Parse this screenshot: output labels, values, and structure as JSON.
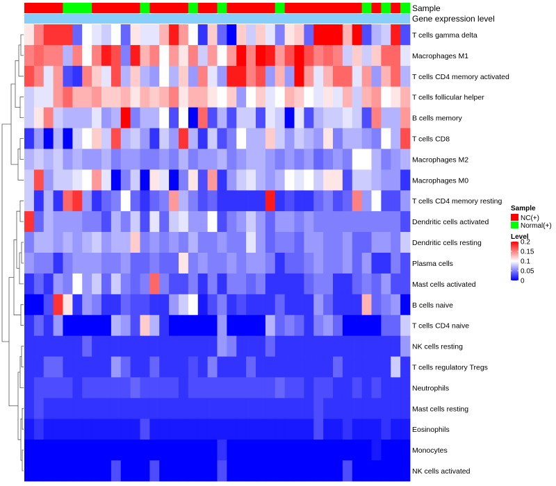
{
  "chart_data": {
    "type": "heatmap",
    "title": "",
    "num_samples": 40,
    "annotation_tracks": [
      {
        "name": "Sample"
      },
      {
        "name": "Gene expression level"
      }
    ],
    "sample_groups": [
      "NC",
      "NC",
      "NC",
      "NC",
      "Normal",
      "Normal",
      "Normal",
      "NC",
      "NC",
      "NC",
      "NC",
      "NC",
      "Normal",
      "NC",
      "NC",
      "NC",
      "NC",
      "Normal",
      "NC",
      "NC",
      "Normal",
      "NC",
      "NC",
      "NC",
      "NC",
      "NC",
      "Normal",
      "NC",
      "NC",
      "NC",
      "NC",
      "NC",
      "NC",
      "NC",
      "NC",
      "Normal",
      "NC",
      "Normal",
      "NC",
      "Normal"
    ],
    "rows": [
      {
        "name": "T cells gamma delta",
        "values": [
          0.11,
          0.15,
          0.18,
          0.18,
          0.18,
          0.04,
          0.1,
          0.09,
          0.08,
          0.1,
          0.04,
          0.11,
          0.09,
          0.09,
          0.13,
          0.19,
          0.14,
          0.1,
          0.02,
          0.12,
          0.04,
          0.0,
          0.12,
          0.08,
          0.12,
          0.09,
          0.05,
          0.11,
          0.12,
          0.04,
          0.2,
          0.2,
          0.2,
          0.13,
          0.2,
          0.03,
          0.07,
          0.08,
          0.19,
          0.03
        ]
      },
      {
        "name": "Macrophages M1",
        "values": [
          0.15,
          0.16,
          0.15,
          0.15,
          0.07,
          0.15,
          0.1,
          0.15,
          0.19,
          0.17,
          0.05,
          0.19,
          0.13,
          0.15,
          0.1,
          0.14,
          0.11,
          0.15,
          0.08,
          0.14,
          0.1,
          0.14,
          0.2,
          0.15,
          0.2,
          0.19,
          0.14,
          0.17,
          0.2,
          0.17,
          0.15,
          0.16,
          0.15,
          0.08,
          0.12,
          0.08,
          0.12,
          0.16,
          0.16,
          0.09
        ]
      },
      {
        "name": "T cells CD4 memory activated",
        "values": [
          0.17,
          0.15,
          0.09,
          0.14,
          0.03,
          0.02,
          0.15,
          0.12,
          0.09,
          0.17,
          0.07,
          0.12,
          0.07,
          0.06,
          0.1,
          0.07,
          0.12,
          0.06,
          0.15,
          0.09,
          0.06,
          0.19,
          0.19,
          0.15,
          0.17,
          0.06,
          0.13,
          0.06,
          0.21,
          0.14,
          0.09,
          0.13,
          0.16,
          0.16,
          0.09,
          0.14,
          0.06,
          0.13,
          0.16,
          0.07
        ]
      },
      {
        "name": "T cells follicular helper",
        "values": [
          0.08,
          0.09,
          0.09,
          0.14,
          0.16,
          0.13,
          0.13,
          0.14,
          0.12,
          0.12,
          0.13,
          0.11,
          0.13,
          0.12,
          0.13,
          0.15,
          0.11,
          0.13,
          0.13,
          0.11,
          0.1,
          0.12,
          0.06,
          0.1,
          0.12,
          0.09,
          0.1,
          0.13,
          0.12,
          0.1,
          0.09,
          0.11,
          0.09,
          0.13,
          0.08,
          0.13,
          0.14,
          0.1,
          0.11,
          0.13
        ]
      },
      {
        "name": "B cells memory",
        "values": [
          0.08,
          0.11,
          0.15,
          0.08,
          0.07,
          0.07,
          0.07,
          0.09,
          0.06,
          0.07,
          0.2,
          0.05,
          0.07,
          0.07,
          0.1,
          0.03,
          0.1,
          0.0,
          0.16,
          0.03,
          0.07,
          0.03,
          0.08,
          0.08,
          0.03,
          0.09,
          0.08,
          0.0,
          0.09,
          0.03,
          0.07,
          0.08,
          0.08,
          0.09,
          0.08,
          0.03,
          0.15,
          0.07,
          0.07,
          0.14
        ]
      },
      {
        "name": "T cells CD8",
        "values": [
          0.02,
          0.06,
          0.0,
          0.07,
          0.0,
          0.08,
          0.1,
          0.12,
          0.08,
          0.17,
          0.07,
          0.08,
          0.06,
          0.02,
          0.08,
          0.06,
          0.18,
          0.07,
          0.02,
          0.08,
          0.03,
          0.05,
          0.1,
          0.07,
          0.07,
          0.12,
          0.08,
          0.06,
          0.08,
          0.07,
          0.06,
          0.11,
          0.05,
          0.07,
          0.07,
          0.06,
          0.05,
          0.1,
          0.07,
          0.17
        ]
      },
      {
        "name": "Macrophages M2",
        "values": [
          0.07,
          0.08,
          0.07,
          0.08,
          0.06,
          0.07,
          0.06,
          0.06,
          0.07,
          0.05,
          0.06,
          0.06,
          0.05,
          0.05,
          0.06,
          0.05,
          0.07,
          0.05,
          0.06,
          0.06,
          0.07,
          0.05,
          0.06,
          0.07,
          0.07,
          0.06,
          0.05,
          0.06,
          0.05,
          0.06,
          0.04,
          0.05,
          0.06,
          0.05,
          0.1,
          0.1,
          0.07,
          0.05,
          0.06,
          0.07
        ]
      },
      {
        "name": "Macrophages M0",
        "values": [
          0.08,
          0.17,
          0.06,
          0.08,
          0.08,
          0.09,
          0.1,
          0.14,
          0.09,
          0.0,
          0.05,
          0.08,
          0.0,
          0.11,
          0.09,
          0.0,
          0.05,
          0.11,
          0.03,
          0.14,
          0.02,
          0.06,
          0.08,
          0.09,
          0.07,
          0.06,
          0.07,
          0.1,
          0.09,
          0.1,
          0.08,
          0.11,
          0.11,
          0.03,
          0.08,
          0.08,
          0.07,
          0.06,
          0.06,
          0.02
        ]
      },
      {
        "name": "T cells CD4 memory resting",
        "values": [
          0.08,
          0.02,
          0.07,
          0.02,
          0.16,
          0.18,
          0.06,
          0.02,
          0.04,
          0.05,
          0.1,
          0.04,
          0.02,
          0.04,
          0.05,
          0.14,
          0.07,
          0.05,
          0.03,
          0.04,
          0.02,
          0.02,
          0.02,
          0.02,
          0.02,
          0.19,
          0.02,
          0.03,
          0.02,
          0.02,
          0.04,
          0.05,
          0.03,
          0.04,
          0.15,
          0.06,
          0.1,
          0.03,
          0.03,
          0.06
        ]
      },
      {
        "name": "Dendritic cells activated",
        "values": [
          0.18,
          0.04,
          0.07,
          0.06,
          0.06,
          0.06,
          0.05,
          0.05,
          0.03,
          0.07,
          0.05,
          0.08,
          0.03,
          0.09,
          0.04,
          0.08,
          0.09,
          0.06,
          0.06,
          0.1,
          0.03,
          0.05,
          0.06,
          0.08,
          0.06,
          0.04,
          0.06,
          0.06,
          0.05,
          0.06,
          0.05,
          0.05,
          0.05,
          0.05,
          0.05,
          0.05,
          0.05,
          0.05,
          0.05,
          0.03
        ]
      },
      {
        "name": "Dendritic cells resting",
        "values": [
          0.05,
          0.07,
          0.07,
          0.06,
          0.07,
          0.06,
          0.07,
          0.08,
          0.06,
          0.07,
          0.07,
          0.12,
          0.05,
          0.06,
          0.05,
          0.06,
          0.05,
          0.07,
          0.05,
          0.05,
          0.06,
          0.05,
          0.05,
          0.09,
          0.06,
          0.04,
          0.05,
          0.05,
          0.04,
          0.06,
          0.06,
          0.05,
          0.05,
          0.06,
          0.04,
          0.04,
          0.06,
          0.06,
          0.05,
          0.08
        ]
      },
      {
        "name": "Plasma cells",
        "values": [
          0.06,
          0.05,
          0.05,
          0.02,
          0.05,
          0.06,
          0.06,
          0.06,
          0.05,
          0.05,
          0.06,
          0.04,
          0.04,
          0.05,
          0.04,
          0.04,
          0.11,
          0.05,
          0.06,
          0.05,
          0.05,
          0.06,
          0.05,
          0.06,
          0.06,
          0.05,
          0.02,
          0.04,
          0.04,
          0.05,
          0.06,
          0.05,
          0.05,
          0.06,
          0.04,
          0.06,
          0.02,
          0.02,
          0.05,
          0.03
        ]
      },
      {
        "name": "Mast cells activated",
        "values": [
          0.02,
          0.04,
          0.02,
          0.06,
          0.05,
          0.1,
          0.06,
          0.08,
          0.04,
          0.08,
          0.05,
          0.04,
          0.05,
          0.16,
          0.05,
          0.03,
          0.03,
          0.05,
          0.02,
          0.05,
          0.02,
          0.05,
          0.05,
          0.04,
          0.05,
          0.02,
          0.02,
          0.02,
          0.02,
          0.04,
          0.05,
          0.05,
          0.02,
          0.02,
          0.04,
          0.05,
          0.04,
          0.06,
          0.03,
          0.03
        ]
      },
      {
        "name": "B cells naive",
        "values": [
          0.0,
          0.0,
          0.03,
          0.18,
          0.11,
          0.02,
          0.06,
          0.05,
          0.02,
          0.02,
          0.04,
          0.03,
          0.03,
          0.02,
          0.02,
          0.06,
          0.08,
          0.1,
          0.01,
          0.03,
          0.05,
          0.02,
          0.03,
          0.02,
          0.02,
          0.02,
          0.04,
          0.02,
          0.02,
          0.02,
          0.06,
          0.04,
          0.02,
          0.02,
          0.02,
          0.13,
          0.04,
          0.05,
          0.06,
          0.0
        ]
      },
      {
        "name": "T cells CD4 naive",
        "values": [
          0.02,
          0.04,
          0.02,
          0.06,
          0.0,
          0.0,
          0.0,
          0.0,
          0.0,
          0.07,
          0.06,
          0.03,
          0.12,
          0.07,
          0.02,
          0.0,
          0.0,
          0.0,
          0.0,
          0.0,
          0.06,
          0.0,
          0.0,
          0.0,
          0.0,
          0.07,
          0.04,
          0.05,
          0.04,
          0.02,
          0.05,
          0.06,
          0.04,
          0.0,
          0.0,
          0.0,
          0.0,
          0.04,
          0.04,
          0.08
        ]
      },
      {
        "name": "NK cells resting",
        "values": [
          0.02,
          0.02,
          0.02,
          0.02,
          0.02,
          0.02,
          0.04,
          0.02,
          0.02,
          0.02,
          0.02,
          0.02,
          0.02,
          0.02,
          0.02,
          0.02,
          0.02,
          0.02,
          0.02,
          0.02,
          0.06,
          0.05,
          0.02,
          0.02,
          0.02,
          0.04,
          0.02,
          0.02,
          0.02,
          0.02,
          0.02,
          0.02,
          0.02,
          0.02,
          0.02,
          0.02,
          0.02,
          0.02,
          0.02,
          0.06
        ]
      },
      {
        "name": "T cells regulatory  Tregs",
        "values": [
          0.02,
          0.02,
          0.04,
          0.04,
          0.02,
          0.02,
          0.02,
          0.02,
          0.02,
          0.06,
          0.04,
          0.02,
          0.02,
          0.04,
          0.02,
          0.02,
          0.02,
          0.03,
          0.02,
          0.05,
          0.02,
          0.02,
          0.02,
          0.04,
          0.02,
          0.02,
          0.02,
          0.02,
          0.02,
          0.02,
          0.02,
          0.02,
          0.04,
          0.02,
          0.02,
          0.02,
          0.02,
          0.02,
          0.08,
          0.02
        ]
      },
      {
        "name": "Neutrophils",
        "values": [
          0.02,
          0.03,
          0.03,
          0.03,
          0.03,
          0.02,
          0.03,
          0.03,
          0.03,
          0.03,
          0.03,
          0.04,
          0.03,
          0.03,
          0.03,
          0.03,
          0.02,
          0.03,
          0.03,
          0.03,
          0.03,
          0.03,
          0.03,
          0.03,
          0.03,
          0.03,
          0.04,
          0.03,
          0.03,
          0.02,
          0.03,
          0.03,
          0.02,
          0.02,
          0.03,
          0.02,
          0.03,
          0.02,
          0.02,
          0.02
        ]
      },
      {
        "name": "Mast cells resting",
        "values": [
          0.02,
          0.03,
          0.02,
          0.02,
          0.02,
          0.02,
          0.02,
          0.02,
          0.02,
          0.02,
          0.02,
          0.02,
          0.02,
          0.02,
          0.02,
          0.02,
          0.02,
          0.02,
          0.02,
          0.02,
          0.02,
          0.02,
          0.02,
          0.02,
          0.02,
          0.02,
          0.02,
          0.02,
          0.02,
          0.02,
          0.03,
          0.02,
          0.02,
          0.02,
          0.02,
          0.02,
          0.02,
          0.02,
          0.02,
          0.02
        ]
      },
      {
        "name": "Eosinophils",
        "values": [
          0.01,
          0.02,
          0.01,
          0.01,
          0.01,
          0.01,
          0.01,
          0.01,
          0.01,
          0.01,
          0.01,
          0.01,
          0.03,
          0.01,
          0.01,
          0.01,
          0.01,
          0.01,
          0.01,
          0.01,
          0.01,
          0.01,
          0.01,
          0.01,
          0.01,
          0.01,
          0.01,
          0.01,
          0.01,
          0.01,
          0.03,
          0.01,
          0.01,
          0.02,
          0.01,
          0.01,
          0.01,
          0.02,
          0.01,
          0.01
        ]
      },
      {
        "name": "Monocytes",
        "values": [
          0.0,
          0.0,
          0.0,
          0.0,
          0.0,
          0.0,
          0.0,
          0.0,
          0.0,
          0.0,
          0.0,
          0.0,
          0.0,
          0.0,
          0.0,
          0.0,
          0.0,
          0.0,
          0.0,
          0.0,
          0.02,
          0.0,
          0.0,
          0.0,
          0.0,
          0.0,
          0.0,
          0.0,
          0.0,
          0.0,
          0.0,
          0.0,
          0.0,
          0.0,
          0.0,
          0.0,
          0.01,
          0.0,
          0.0,
          0.0
        ]
      },
      {
        "name": "NK cells activated",
        "values": [
          0.0,
          0.0,
          0.0,
          0.0,
          0.0,
          0.0,
          0.0,
          0.0,
          0.0,
          0.03,
          0.0,
          0.0,
          0.0,
          0.03,
          0.0,
          0.0,
          0.0,
          0.0,
          0.0,
          0.0,
          0.03,
          0.0,
          0.0,
          0.0,
          0.0,
          0.0,
          0.0,
          0.0,
          0.0,
          0.0,
          0.0,
          0.0,
          0.0,
          0.03,
          0.0,
          0.0,
          0.0,
          0.0,
          0.0,
          0.0
        ]
      }
    ],
    "legend": {
      "sample": {
        "title": "Sample",
        "entries": [
          {
            "key": "NC",
            "label": "NC(+)",
            "color": "#ff0000"
          },
          {
            "key": "Normal",
            "label": "Normal(+)",
            "color": "#00ff00"
          }
        ]
      },
      "level": {
        "title": "Level",
        "ticks": [
          0.2,
          0.15,
          0.1,
          0.05,
          0
        ],
        "tick_labels": [
          "0.2",
          "0.15",
          "0.1",
          "0.05",
          "0"
        ],
        "range": [
          0,
          0.2
        ]
      }
    },
    "colors": {
      "low": "#0000ff",
      "mid": "#ffffff",
      "high": "#ff0000",
      "expression_track": "#87cefa",
      "nc": "#ff0000",
      "normal": "#00ff00"
    }
  }
}
